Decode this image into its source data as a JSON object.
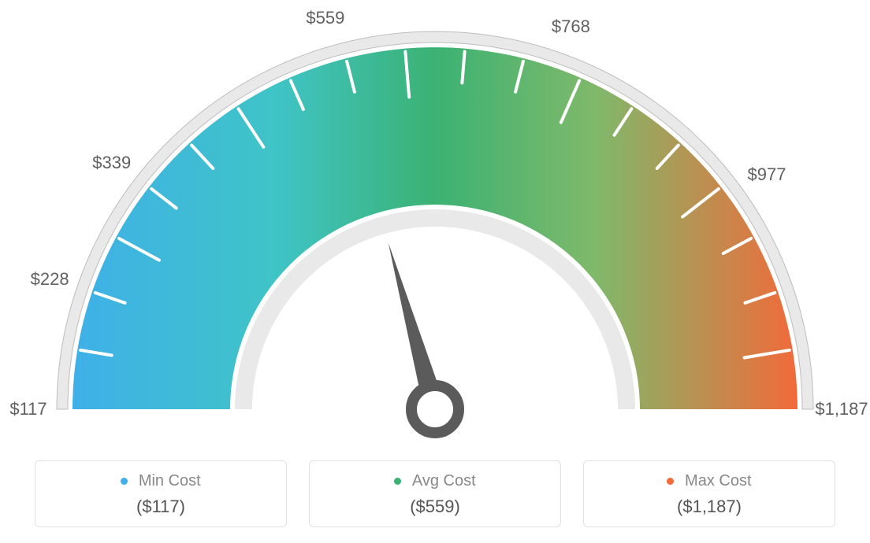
{
  "gauge": {
    "type": "gauge",
    "min_value": 117,
    "max_value": 1187,
    "needle_value": 559,
    "tick_values": [
      117,
      228,
      339,
      559,
      768,
      977,
      1187
    ],
    "tick_labels": [
      "$117",
      "$228",
      "$339",
      "$559",
      "$768",
      "$977",
      "$1,187"
    ],
    "tick_label_fontsize": 22,
    "tick_label_color": "#606060",
    "outer_radius": 460,
    "inner_radius": 260,
    "track_outer_radius": 480,
    "track_color": "#e9e9e9",
    "track_stroke": "#bdbdbd",
    "inner_track_color": "#e9e9e9",
    "band_colors": {
      "start": "#3fb0e8",
      "mid": "#3bb273",
      "end": "#f26a3a"
    },
    "needle_color": "#5b5b5b",
    "minor_tick_color": "#ffffff",
    "minor_tick_count": 19,
    "background_color": "#ffffff"
  },
  "legend": {
    "items": [
      {
        "label": "Min Cost",
        "value": "($117)",
        "color": "#3fb0e8"
      },
      {
        "label": "Avg Cost",
        "value": "($559)",
        "color": "#3bb273"
      },
      {
        "label": "Max Cost",
        "value": "($1,187)",
        "color": "#f26a3a"
      }
    ],
    "box_border_color": "#e2e2e2",
    "box_border_radius": 6,
    "value_color": "#555555",
    "label_fontsize": 20,
    "value_fontsize": 22
  }
}
